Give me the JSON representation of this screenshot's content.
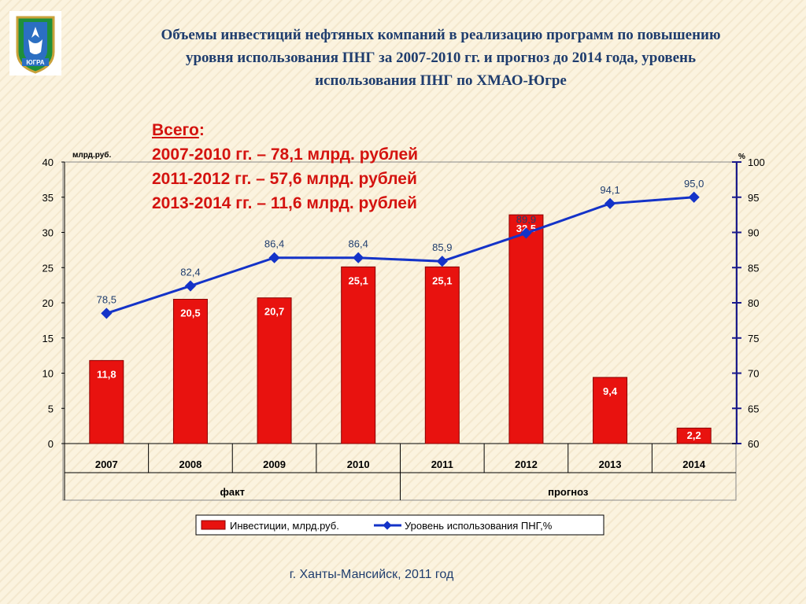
{
  "title": {
    "line1": "Объемы инвестиций нефтяных компаний в реализацию программ по повышению",
    "line2": "уровня использования ПНГ за 2007-2010 гг. и прогноз до 2014 года, уровень",
    "line3": "использования ПНГ по ХМАО-Югре"
  },
  "emblem": {
    "icon": "coat-of-arms-icon",
    "caption": "ЮГРА"
  },
  "totals": {
    "header": "Всего",
    "line1": "2007-2010 гг. – 78,1 млрд. рублей",
    "line2": "2011-2012 гг. – 57,6 млрд. рублей",
    "line3": "2013-2014 гг. – 11,6 млрд. рублей"
  },
  "footer": "г. Ханты-Мансийск, 2011 год",
  "chart_data": {
    "type": "bar",
    "categories": [
      "2007",
      "2008",
      "2009",
      "2010",
      "2011",
      "2012",
      "2013",
      "2014"
    ],
    "groups": [
      {
        "label": "факт",
        "categories": [
          "2007",
          "2008",
          "2009",
          "2010"
        ]
      },
      {
        "label": "прогноз",
        "categories": [
          "2011",
          "2012",
          "2013",
          "2014"
        ]
      }
    ],
    "series": [
      {
        "name": "Инвестиции, млрд.руб.",
        "type": "bar",
        "axis": "left",
        "color": "#e8120f",
        "values": [
          11.8,
          20.5,
          20.7,
          25.1,
          25.1,
          32.5,
          9.4,
          2.2
        ],
        "labels": [
          "11,8",
          "20,5",
          "20,7",
          "25,1",
          "25,1",
          "32,5",
          "9,4",
          "2,2"
        ]
      },
      {
        "name": "Уровень использования ПНГ,%",
        "type": "line",
        "axis": "right",
        "color": "#1433c8",
        "values": [
          78.5,
          82.4,
          86.4,
          86.4,
          85.9,
          89.9,
          94.1,
          95.0
        ],
        "labels": [
          "78,5",
          "82,4",
          "86,4",
          "86,4",
          "85,9",
          "89,9",
          "94,1",
          "95,0"
        ]
      }
    ],
    "y_left": {
      "unit": "млрд.руб.",
      "range": [
        0,
        40
      ],
      "ticks": [
        0,
        5,
        10,
        15,
        20,
        25,
        30,
        35,
        40
      ]
    },
    "y_right": {
      "unit": "%",
      "range": [
        60,
        100
      ],
      "ticks": [
        60,
        65,
        70,
        75,
        80,
        85,
        90,
        95,
        100
      ]
    },
    "legend_position": "bottom",
    "grid": false
  }
}
